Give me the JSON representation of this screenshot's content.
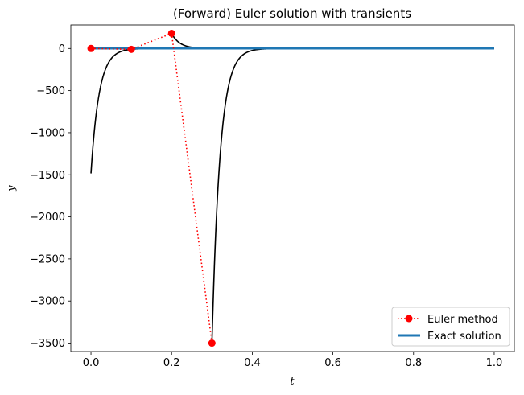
{
  "chart_data": {
    "type": "line",
    "title": "(Forward) Euler solution with transients",
    "xlabel": "t",
    "ylabel": "y",
    "xlim": [
      -0.05,
      1.05
    ],
    "ylim": [
      -3600,
      280
    ],
    "xticks": [
      0.0,
      0.2,
      0.4,
      0.6,
      0.8,
      1.0
    ],
    "xtick_labels": [
      "0.0",
      "0.2",
      "0.4",
      "0.6",
      "0.8",
      "1.0"
    ],
    "yticks": [
      0,
      -500,
      -1000,
      -1500,
      -2000,
      -2500,
      -3000,
      -3500
    ],
    "ytick_labels": [
      "0",
      "−500",
      "−1000",
      "−1500",
      "−2000",
      "−2500",
      "−3000",
      "−3500"
    ],
    "legend_position": "lower-right",
    "series": [
      {
        "name": "Euler method",
        "style": "dotted-marker",
        "color": "#ff0000",
        "x": [
          0.0,
          0.1,
          0.2,
          0.3
        ],
        "y": [
          0,
          -10,
          180,
          -3500
        ]
      },
      {
        "name": "Exact solution",
        "style": "solid",
        "color": "#1f77b4",
        "x": [
          0.0,
          1.0
        ],
        "y": [
          0,
          0
        ]
      }
    ],
    "transients": {
      "color": "#000000",
      "starts": [
        {
          "t0": 0.1,
          "y0": -10,
          "decay": 50
        },
        {
          "t0": 0.2,
          "y0": 180,
          "decay": 50
        },
        {
          "t0": 0.3,
          "y0": -3500,
          "decay": 50
        }
      ],
      "pre_curve": {
        "t_end": 0.1,
        "y_end": -10,
        "decay": 50
      }
    }
  }
}
